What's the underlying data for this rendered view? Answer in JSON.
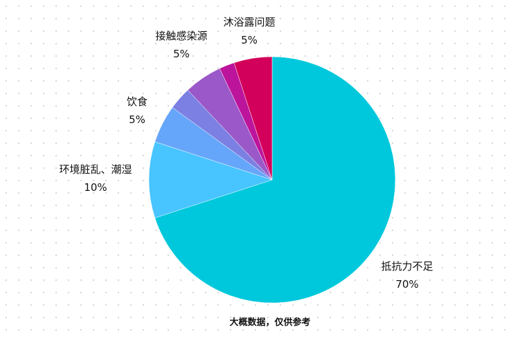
{
  "chart_data": {
    "type": "pie",
    "start_angle": "12 o'clock, clockwise",
    "slices": [
      {
        "label": "抵抗力不足",
        "value": 70,
        "value_label": "70%",
        "color": "#00c8dc"
      },
      {
        "label": "环境脏乱、潮湿",
        "value": 10,
        "value_label": "10%",
        "color": "#48c4ff"
      },
      {
        "label": "饮食",
        "value": 5,
        "value_label": "5%",
        "color": "#66a6fa"
      },
      {
        "label": "",
        "value": 3,
        "value_label": "",
        "color": "#7b80e2"
      },
      {
        "label": "接触感染源",
        "value": 5,
        "value_label": "5%",
        "color": "#9a58c8"
      },
      {
        "label": "",
        "value": 2,
        "value_label": "",
        "color": "#bd149c"
      },
      {
        "label": "沐浴露问题",
        "value": 5,
        "value_label": "5%",
        "color": "#d2005a"
      }
    ],
    "footnote": "大概数据，仅供参考",
    "background": "dotted grid",
    "grid": false,
    "legend": "none"
  }
}
